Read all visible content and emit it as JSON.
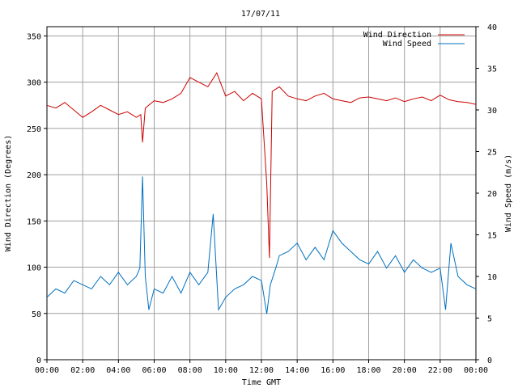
{
  "chart_data": {
    "type": "line",
    "title": "17/07/11",
    "xlabel": "Time GMT",
    "ylabel_left": "Wind Direction (Degrees)",
    "ylabel_right": "Wind Speed (m/s)",
    "x_ticks": [
      "00:00",
      "02:00",
      "04:00",
      "06:00",
      "08:00",
      "10:00",
      "12:00",
      "14:00",
      "16:00",
      "18:00",
      "20:00",
      "22:00",
      "00:00"
    ],
    "y_left_ticks": [
      "0",
      "50",
      "100",
      "150",
      "200",
      "250",
      "300",
      "350"
    ],
    "y_right_ticks": [
      "0",
      "5",
      "10",
      "15",
      "20",
      "25",
      "30",
      "35",
      "40"
    ],
    "ylim_left": [
      0,
      360
    ],
    "ylim_right": [
      0,
      40
    ],
    "xlim_hours": [
      0,
      24
    ],
    "grid": true,
    "legend_position": "top-right",
    "series": [
      {
        "name": "Wind Direction",
        "axis": "left",
        "color": "#cc0000",
        "x_hours": [
          0,
          0.5,
          1,
          1.5,
          2,
          2.5,
          3,
          3.5,
          4,
          4.5,
          5,
          5.25,
          5.35,
          5.5,
          6,
          6.5,
          7,
          7.5,
          8,
          8.5,
          9,
          9.5,
          10,
          10.5,
          11,
          11.5,
          12,
          12.3,
          12.45,
          12.6,
          13,
          13.5,
          14,
          14.5,
          15,
          15.5,
          16,
          16.5,
          17,
          17.5,
          18,
          18.5,
          19,
          19.5,
          20,
          20.5,
          21,
          21.5,
          22,
          22.5,
          23,
          23.5,
          24
        ],
        "values": [
          275,
          272,
          278,
          270,
          262,
          268,
          275,
          270,
          265,
          268,
          262,
          265,
          235,
          272,
          280,
          278,
          282,
          288,
          305,
          300,
          295,
          310,
          285,
          290,
          280,
          288,
          282,
          190,
          110,
          290,
          295,
          285,
          282,
          280,
          285,
          288,
          282,
          280,
          278,
          283,
          284,
          282,
          280,
          283,
          279,
          282,
          284,
          280,
          286,
          281,
          279,
          278,
          276
        ]
      },
      {
        "name": "Wind Speed",
        "axis": "right",
        "color": "#0070c0",
        "x_hours": [
          0,
          0.5,
          1,
          1.5,
          2,
          2.5,
          3,
          3.5,
          4,
          4.5,
          5,
          5.2,
          5.35,
          5.5,
          5.7,
          6,
          6.5,
          7,
          7.5,
          8,
          8.5,
          9,
          9.3,
          9.6,
          10,
          10.5,
          11,
          11.5,
          12,
          12.3,
          12.5,
          12.8,
          13,
          13.5,
          14,
          14.5,
          15,
          15.5,
          16,
          16.5,
          17,
          17.5,
          18,
          18.5,
          19,
          19.5,
          20,
          20.5,
          21,
          21.5,
          22,
          22.3,
          22.6,
          23,
          23.5,
          24
        ],
        "values": [
          7.5,
          8.5,
          8.0,
          9.5,
          9.0,
          8.5,
          10.0,
          9.0,
          10.5,
          9.0,
          10.0,
          11.0,
          22.0,
          10.0,
          6.0,
          8.5,
          8.0,
          10.0,
          8.0,
          10.5,
          9.0,
          10.5,
          17.5,
          6.0,
          7.5,
          8.5,
          9.0,
          10.0,
          9.5,
          5.5,
          9.0,
          11.0,
          12.5,
          13.0,
          14.0,
          12.0,
          13.5,
          12.0,
          15.5,
          14.0,
          13.0,
          12.0,
          11.5,
          13.0,
          11.0,
          12.5,
          10.5,
          12.0,
          11.0,
          10.5,
          11.0,
          6.0,
          14.0,
          10.0,
          9.0,
          8.5
        ]
      }
    ]
  }
}
